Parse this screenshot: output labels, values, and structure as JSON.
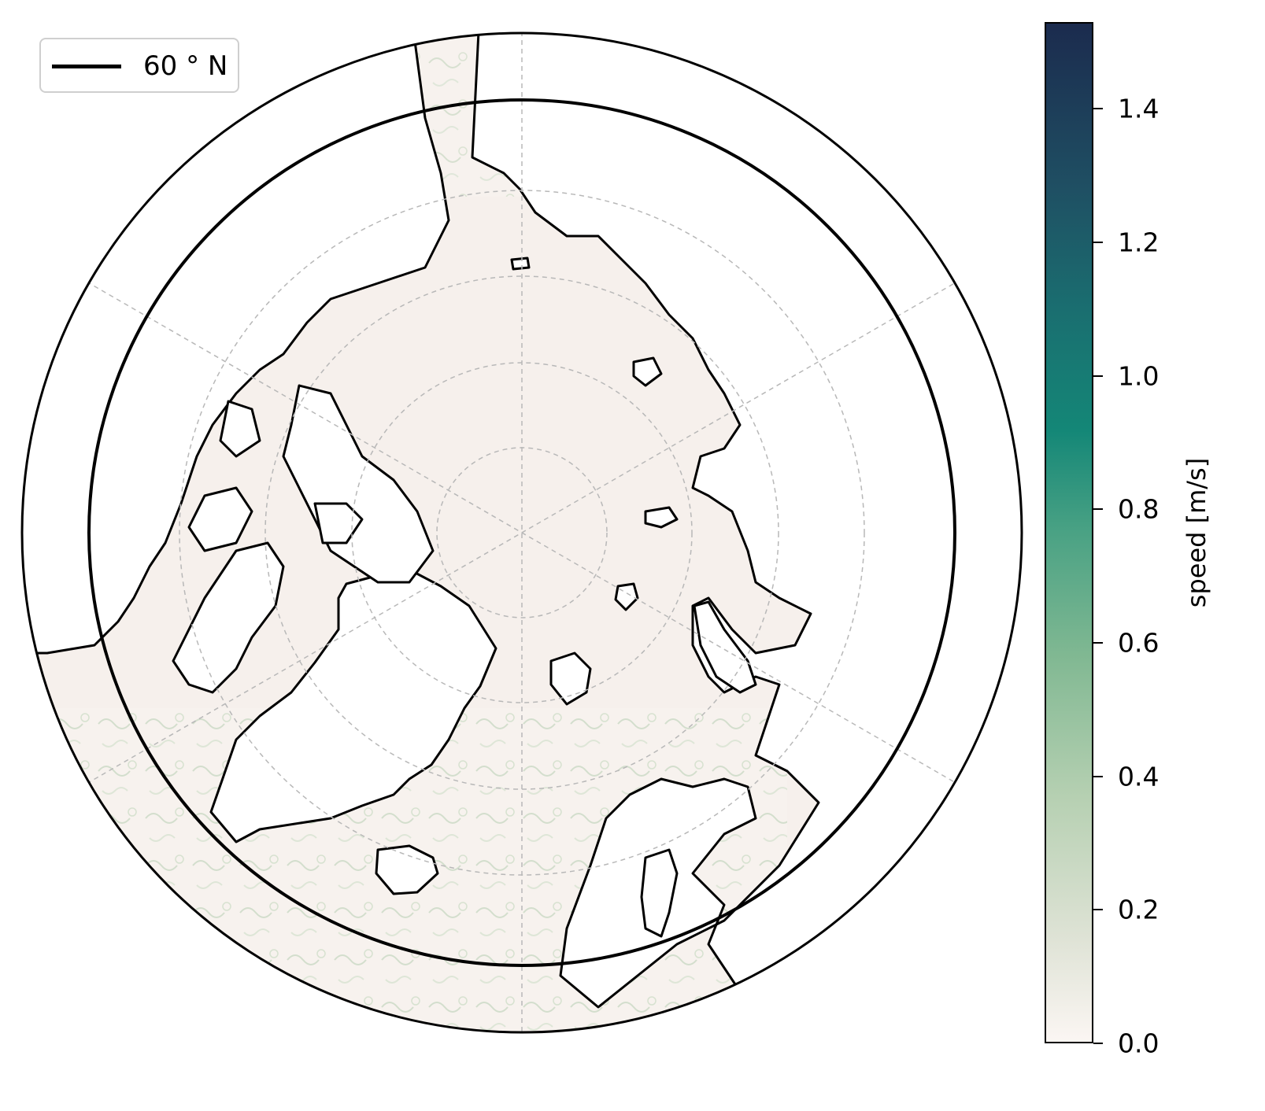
{
  "legend": {
    "label": "60$^\\circ$N",
    "label_rendered": "60 ° N"
  },
  "colorbar": {
    "label": "speed [m/s]",
    "ticks": [
      "0.0",
      "0.2",
      "0.4",
      "0.6",
      "0.8",
      "1.0",
      "1.2",
      "1.4"
    ],
    "tick_values": [
      0.0,
      0.2,
      0.4,
      0.6,
      0.8,
      1.0,
      1.2,
      1.4
    ],
    "range": [
      0.0,
      1.53
    ],
    "colors": [
      "#fbf6f3",
      "#b6d0b2",
      "#4aa284",
      "#148777",
      "#1f4f63",
      "#1b2b4e"
    ]
  },
  "map": {
    "projection": "north-polar-stereographic",
    "boundary_latitude": 50,
    "highlight_parallel": "60°N",
    "ocean_color": "#f6f0ec",
    "land_color": "#ffffff",
    "coastline_color": "#000000",
    "gridlines": "dashed",
    "graticule_parallels": [
      60,
      70,
      80
    ]
  }
}
